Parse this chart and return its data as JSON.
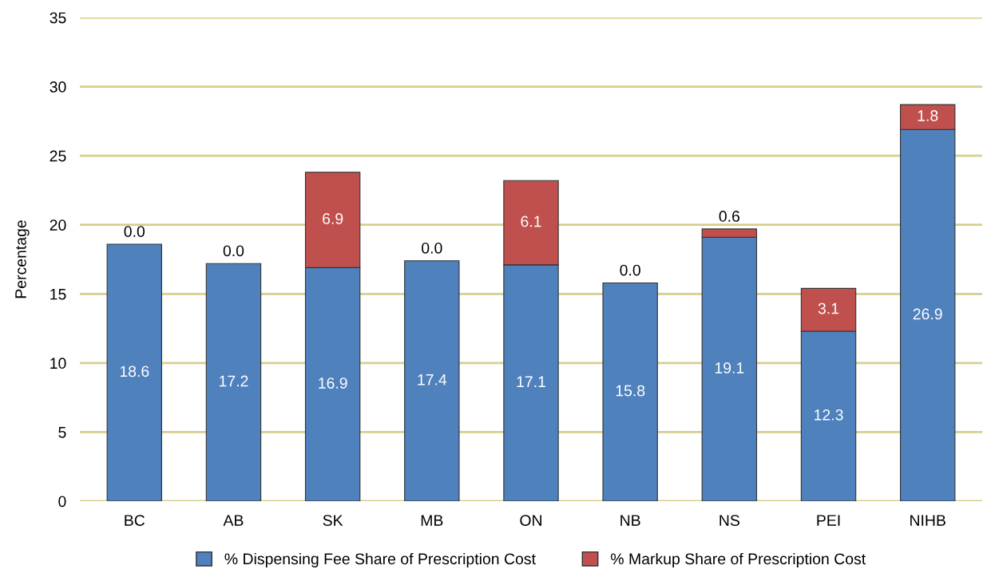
{
  "chart_data": {
    "type": "bar",
    "stacked": true,
    "ylabel": "Percentage",
    "categories": [
      "BC",
      "AB",
      "SK",
      "MB",
      "ON",
      "NB",
      "NS",
      "PEI",
      "NIHB"
    ],
    "series": [
      {
        "name": "% Dispensing Fee Share of Prescription Cost",
        "color": "#4f81bd",
        "values": [
          18.6,
          17.2,
          16.9,
          17.4,
          17.1,
          15.8,
          19.1,
          12.3,
          26.9
        ],
        "value_labels": [
          "18.6",
          "17.2",
          "16.9",
          "17.4",
          "17.1",
          "15.8",
          "19.1",
          "12.3",
          "26.9"
        ]
      },
      {
        "name": "% Markup Share of Prescription Cost",
        "color": "#c0504d",
        "values": [
          0.0,
          0.0,
          6.9,
          0.0,
          6.1,
          0.0,
          0.6,
          3.1,
          1.8
        ],
        "value_labels": [
          "0.0",
          "0.0",
          "6.9",
          "0.0",
          "6.1",
          "0.0",
          "0.6",
          "3.1",
          "1.8"
        ]
      }
    ],
    "ylim": [
      0,
      35
    ],
    "yticks": [
      0,
      5,
      10,
      15,
      20,
      25,
      30,
      35
    ],
    "grid": "y",
    "legend": "bottom"
  }
}
